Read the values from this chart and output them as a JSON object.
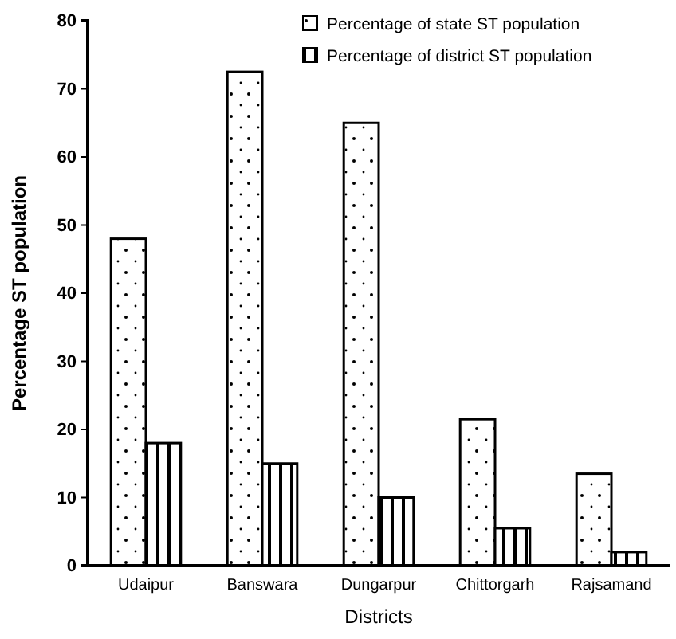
{
  "chart_data": {
    "type": "bar",
    "xlabel": "Districts",
    "ylabel": "Percentage ST population",
    "categories": [
      "Udaipur",
      "Banswara",
      "Dungarpur",
      "Chittorgarh",
      "Rajsamand"
    ],
    "series": [
      {
        "name": "Percentage of state ST population",
        "color": "#000000",
        "values": [
          48,
          72.5,
          65,
          21.5,
          13.5
        ]
      },
      {
        "name": "Percentage of district ST population",
        "color": "#000000",
        "values": [
          18,
          15,
          10,
          5.5,
          2
        ]
      }
    ],
    "ylim": [
      0,
      80
    ],
    "yticks": [
      0,
      10,
      20,
      30,
      40,
      50,
      60,
      70,
      80
    ],
    "grid": false,
    "legend": "top right"
  }
}
